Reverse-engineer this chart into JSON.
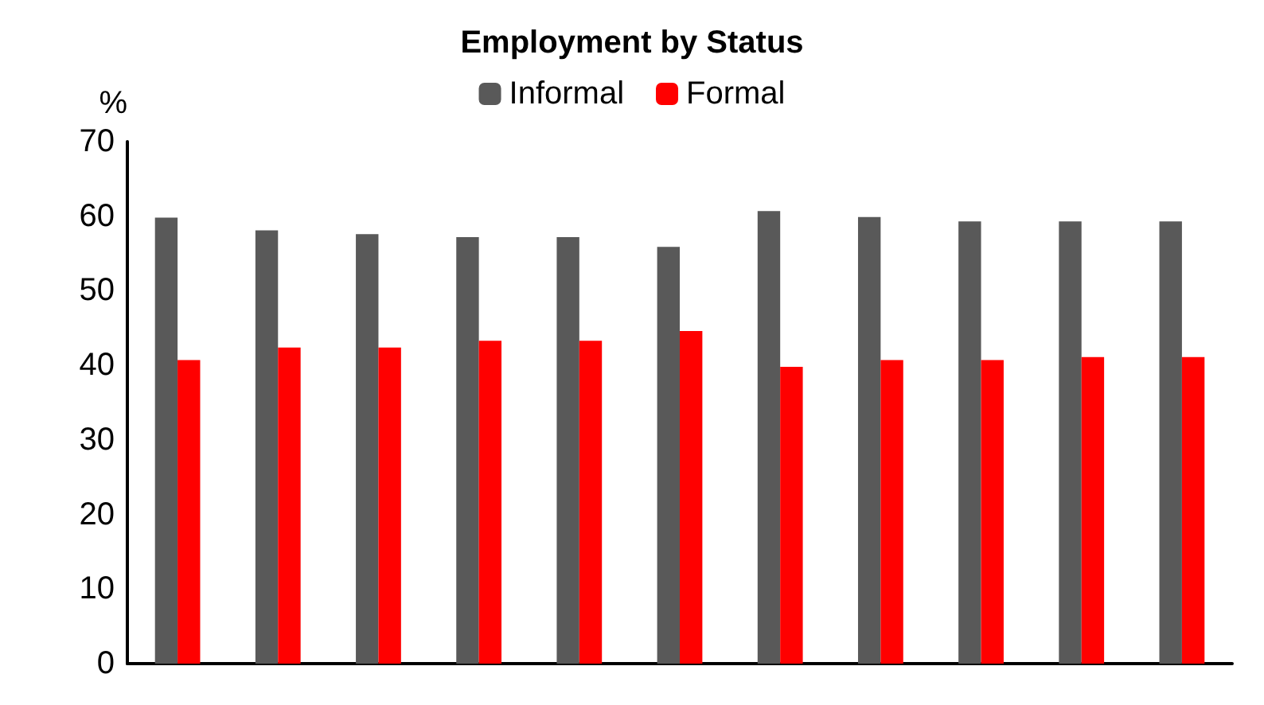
{
  "chart_data": {
    "type": "bar",
    "title": "Employment by Status",
    "ylabel": "%",
    "categories": [
      null,
      null,
      null,
      null,
      null,
      null,
      null,
      null,
      null,
      null,
      null
    ],
    "series": [
      {
        "name": "Informal",
        "color": "#595959",
        "values": [
          59.8,
          58.1,
          57.6,
          57.2,
          57.2,
          55.9,
          60.7,
          59.9,
          59.3,
          59.3,
          59.3
        ]
      },
      {
        "name": "Formal",
        "color": "#ff0000",
        "values": [
          40.7,
          42.4,
          42.4,
          43.3,
          43.3,
          44.6,
          39.8,
          40.7,
          40.7,
          41.1,
          41.1
        ]
      }
    ],
    "ylim": [
      0,
      70
    ],
    "yticks": [
      0,
      10,
      20,
      30,
      40,
      50,
      60,
      70
    ],
    "grid": false,
    "legend": "top"
  }
}
